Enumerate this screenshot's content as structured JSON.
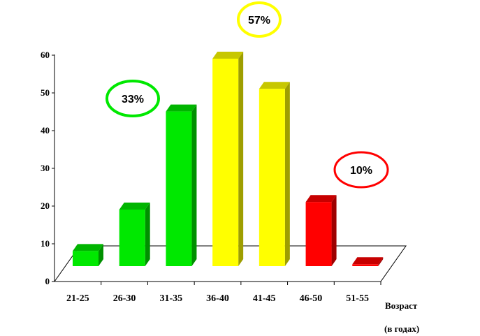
{
  "chart_data": {
    "type": "bar",
    "categories": [
      "21-25",
      "26-30",
      "31-35",
      "36-40",
      "41-45",
      "46-50",
      "51-55"
    ],
    "values": [
      4,
      15,
      41,
      55,
      47,
      17,
      0.5
    ],
    "bar_colors": [
      "#00e800",
      "#00e800",
      "#00e800",
      "#ffff00",
      "#ffff00",
      "#ff0000",
      "#ff0000"
    ],
    "yticks": [
      0,
      10,
      20,
      30,
      40,
      50,
      60
    ],
    "ylim": [
      0,
      60
    ],
    "xlabel_line1": "Возраст",
    "xlabel_line2": "(в годах)",
    "grid": false,
    "annotations": [
      {
        "text": "33%",
        "color": "#00e800"
      },
      {
        "text": "57%",
        "color": "#ffff00"
      },
      {
        "text": "10%",
        "color": "#ff0000"
      }
    ]
  }
}
